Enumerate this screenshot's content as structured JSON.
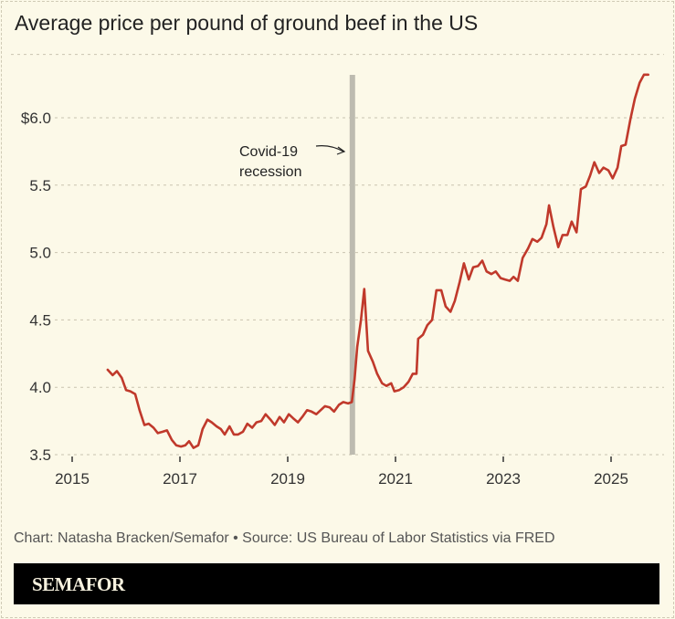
{
  "title": "Average price per pound of ground beef in the US",
  "footer": "Chart: Natasha Bracken/Semafor • Source: US Bureau of Labor Statistics via FRED",
  "brand": "SEMAFOR",
  "colors": {
    "line": "#c0392b",
    "recession": "#bdbbb0",
    "background": "#fcf9e8"
  },
  "chart_data": {
    "type": "line",
    "title": "Average price per pound of ground beef in the US",
    "xlim": [
      2014.8,
      2025.9
    ],
    "ylim": [
      3.5,
      6.47
    ],
    "grid": true,
    "xticks": [
      2015,
      2017,
      2019,
      2021,
      2023,
      2025
    ],
    "xtick_labels": [
      "2015",
      "2017",
      "2019",
      "2021",
      "2023",
      "2025"
    ],
    "yticks": [
      3.5,
      4.0,
      4.5,
      5.0,
      5.5,
      6.0
    ],
    "ytick_labels": [
      "3.5",
      "4.0",
      "4.5",
      "5.0",
      "5.5",
      "$6.0"
    ],
    "annotation": {
      "text_lines": [
        "Covid-19",
        "recession"
      ],
      "x": 2020.2
    },
    "x": [
      2015.66,
      2015.75,
      2015.83,
      2015.92,
      2016.0,
      2016.08,
      2016.17,
      2016.25,
      2016.34,
      2016.42,
      2016.51,
      2016.59,
      2016.68,
      2016.76,
      2016.85,
      2016.93,
      2017.02,
      2017.1,
      2017.17,
      2017.25,
      2017.34,
      2017.42,
      2017.51,
      2017.59,
      2017.68,
      2017.76,
      2017.83,
      2017.92,
      2018.0,
      2018.08,
      2018.17,
      2018.25,
      2018.34,
      2018.42,
      2018.51,
      2018.59,
      2018.68,
      2018.76,
      2018.85,
      2018.93,
      2019.02,
      2019.1,
      2019.19,
      2019.27,
      2019.36,
      2019.44,
      2019.53,
      2019.61,
      2019.69,
      2019.78,
      2019.86,
      2019.95,
      2020.03,
      2020.12,
      2020.19,
      2020.24,
      2020.29,
      2020.36,
      2020.42,
      2020.49,
      2020.58,
      2020.66,
      2020.75,
      2020.83,
      2020.92,
      2020.98,
      2021.07,
      2021.15,
      2021.24,
      2021.32,
      2021.39,
      2021.42,
      2021.51,
      2021.59,
      2021.68,
      2021.76,
      2021.85,
      2021.93,
      2022.02,
      2022.1,
      2022.19,
      2022.27,
      2022.36,
      2022.44,
      2022.53,
      2022.61,
      2022.69,
      2022.78,
      2022.86,
      2022.95,
      2023.03,
      2023.12,
      2023.19,
      2023.27,
      2023.36,
      2023.46,
      2023.54,
      2023.63,
      2023.71,
      2023.8,
      2023.85,
      2023.93,
      2024.02,
      2024.1,
      2024.19,
      2024.27,
      2024.36,
      2024.44,
      2024.53,
      2024.61,
      2024.69,
      2024.78,
      2024.86,
      2024.95,
      2025.03,
      2025.12,
      2025.19,
      2025.27,
      2025.36,
      2025.44,
      2025.53,
      2025.61,
      2025.69
    ],
    "y": [
      4.13,
      4.09,
      4.12,
      4.07,
      3.98,
      3.97,
      3.95,
      3.83,
      3.72,
      3.73,
      3.7,
      3.66,
      3.67,
      3.68,
      3.61,
      3.57,
      3.56,
      3.57,
      3.6,
      3.55,
      3.57,
      3.69,
      3.76,
      3.74,
      3.71,
      3.69,
      3.65,
      3.71,
      3.65,
      3.65,
      3.67,
      3.73,
      3.7,
      3.74,
      3.75,
      3.8,
      3.76,
      3.72,
      3.78,
      3.74,
      3.8,
      3.77,
      3.74,
      3.78,
      3.83,
      3.82,
      3.8,
      3.83,
      3.86,
      3.85,
      3.82,
      3.87,
      3.89,
      3.88,
      3.89,
      4.06,
      4.3,
      4.5,
      4.73,
      4.27,
      4.19,
      4.1,
      4.03,
      4.01,
      4.03,
      3.97,
      3.98,
      4.0,
      4.04,
      4.1,
      4.1,
      4.36,
      4.39,
      4.46,
      4.5,
      4.72,
      4.72,
      4.6,
      4.56,
      4.64,
      4.78,
      4.92,
      4.8,
      4.89,
      4.9,
      4.94,
      4.86,
      4.84,
      4.86,
      4.81,
      4.8,
      4.79,
      4.82,
      4.79,
      4.96,
      5.03,
      5.1,
      5.08,
      5.11,
      5.21,
      5.35,
      5.19,
      5.04,
      5.13,
      5.13,
      5.23,
      5.15,
      5.47,
      5.49,
      5.57,
      5.67,
      5.59,
      5.63,
      5.61,
      5.55,
      5.63,
      5.79,
      5.8,
      5.99,
      6.14,
      6.26,
      6.32,
      6.32
    ]
  }
}
